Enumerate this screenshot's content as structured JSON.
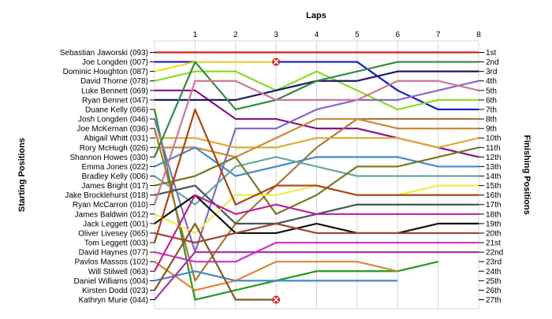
{
  "chart_data": {
    "type": "line",
    "title": "Laps",
    "ylabel_left": "Starting Positions",
    "ylabel_right": "Finishing Positions",
    "laps": [
      1,
      2,
      3,
      4,
      5,
      6,
      7,
      8
    ],
    "start_labels": [
      "Sebastian Jaworski (093)",
      "Joe Longden (007)",
      "Dominic Houghton (087)",
      "David Thorne (078)",
      "Luke Bennett (069)",
      "Ryan Bennet (047)",
      "Duane Kelly (066)",
      "Josh Longden (046)",
      "Joe McKernan (036)",
      "Abigail Whitt (031)",
      "Rory McHugh (026)",
      "Shannon Howes (030)",
      "Emma Jones (022)",
      "Bradley Kelly (006)",
      "James Bright (017)",
      "Jake Brocklehurst (018)",
      "Ryan McCarron (010)",
      "James Baldwin (012)",
      "Jack Leggett (001)",
      "Oliver Livesey (065)",
      "Tom Leggett (003)",
      "David Haynes (077)",
      "Pavlos Massos (102)",
      "Will Stilwell (063)",
      "Daniel Williams (004)",
      "Kirsten Dodd (023)",
      "Kathryn Murie (044)"
    ],
    "finish_labels": [
      "1st",
      "2nd",
      "3rd",
      "4th",
      "5th",
      "6th",
      "7th",
      "8th",
      "9th",
      "10th",
      "11th",
      "12th",
      "13th",
      "14th",
      "15th",
      "16th",
      "17th",
      "18th",
      "19th",
      "20th",
      "21st",
      "22nd",
      "23rd",
      "24th",
      "25th",
      "26th",
      "27th"
    ],
    "series": [
      {
        "color": "#cc2222",
        "positions": [
          1,
          1,
          1,
          1,
          1,
          1,
          1,
          1,
          1
        ]
      },
      {
        "color": "#1a1acc",
        "positions": [
          2,
          2,
          2,
          2,
          2,
          2,
          5,
          7,
          7
        ]
      },
      {
        "color": "#e8e020",
        "positions": [
          3,
          2,
          2,
          2
        ],
        "dnf": true
      },
      {
        "color": "#88dd22",
        "positions": [
          4,
          3,
          3,
          5,
          3,
          5,
          7,
          6,
          6
        ]
      },
      {
        "color": "#881188",
        "positions": [
          5,
          5,
          8,
          8,
          9,
          9,
          10,
          11,
          12
        ]
      },
      {
        "color": "#1a1a66",
        "positions": [
          6,
          6,
          6,
          5,
          4,
          4,
          3,
          3,
          3
        ]
      },
      {
        "color": "#229922",
        "positions": [
          7,
          27,
          26,
          25,
          24,
          24,
          24,
          23
        ]
      },
      {
        "color": "#8866cc",
        "positions": [
          8,
          22,
          9,
          9,
          7,
          6,
          6,
          5,
          4
        ]
      },
      {
        "color": "#aa7733",
        "positions": [
          9,
          25,
          19,
          15,
          11,
          8,
          8,
          8,
          8
        ]
      },
      {
        "color": "#ddaa33",
        "positions": [
          10,
          10,
          11,
          11,
          10,
          10,
          10,
          11,
          10
        ]
      },
      {
        "color": "#cc8833",
        "positions": [
          11,
          11,
          12,
          10,
          8,
          8,
          9,
          9,
          9
        ]
      },
      {
        "color": "#338844",
        "positions": [
          12,
          2,
          7,
          6,
          4,
          3,
          2,
          2,
          2
        ]
      },
      {
        "color": "#4488cc",
        "positions": [
          13,
          11,
          14,
          13,
          12,
          12,
          12,
          13,
          13
        ]
      },
      {
        "color": "#66aa99",
        "positions": [
          14,
          17,
          13,
          12,
          13,
          14,
          14,
          14,
          14
        ]
      },
      {
        "color": "#777722",
        "positions": [
          15,
          14,
          12,
          18,
          16,
          13,
          13,
          12,
          11
        ]
      },
      {
        "color": "#445555",
        "positions": [
          16,
          15,
          19,
          19,
          18,
          17,
          17,
          17,
          17
        ]
      },
      {
        "color": "#cc7799",
        "positions": [
          17,
          4,
          4,
          6,
          6,
          6,
          4,
          4,
          5
        ]
      },
      {
        "color": "#eeee44",
        "positions": [
          18,
          20,
          16,
          16,
          15,
          16,
          16,
          15,
          15
        ]
      },
      {
        "color": "#111111",
        "positions": [
          19,
          16,
          20,
          20,
          19,
          20,
          20,
          19,
          19
        ]
      },
      {
        "color": "#994433",
        "positions": [
          20,
          21,
          20,
          19,
          20,
          20,
          20,
          20,
          20
        ]
      },
      {
        "color": "#aa4411",
        "positions": [
          21,
          7,
          17,
          15,
          15,
          16,
          16,
          16,
          16
        ]
      },
      {
        "color": "#cc33cc",
        "positions": [
          22,
          23,
          23,
          21,
          21,
          21,
          21,
          21,
          21
        ]
      },
      {
        "color": "#dd8833",
        "positions": [
          23,
          26,
          25,
          23,
          23,
          23,
          24
        ]
      },
      {
        "color": "#bb2299",
        "positions": [
          24,
          16,
          18,
          17,
          18,
          18,
          18,
          18,
          18
        ]
      },
      {
        "color": "#4488cc",
        "positions": [
          25,
          24,
          25,
          25,
          25,
          25,
          25
        ]
      },
      {
        "color": "#885522",
        "positions": [
          26,
          19,
          27,
          27
        ],
        "dnf": true
      },
      {
        "color": "#aa33aa",
        "positions": [
          27,
          22,
          22,
          22,
          22,
          22,
          22,
          22,
          22
        ]
      }
    ]
  }
}
